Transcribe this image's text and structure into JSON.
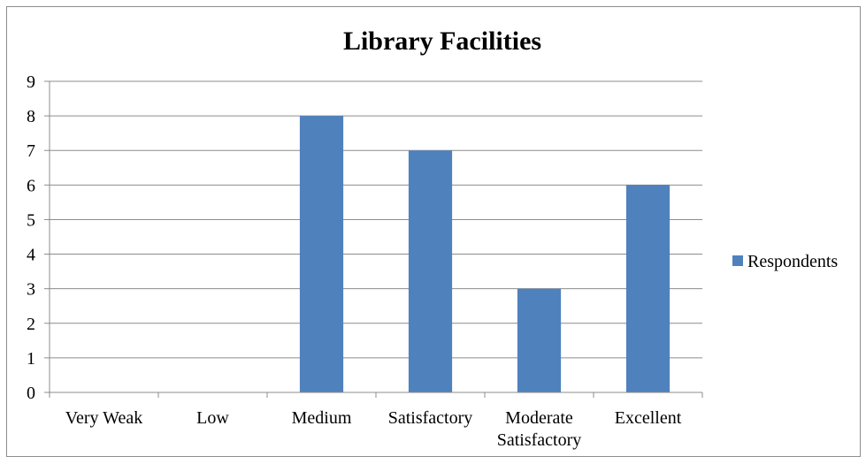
{
  "chart_data": {
    "type": "bar",
    "title": "Library Facilities",
    "categories": [
      "Very Weak",
      "Low",
      "Medium",
      "Satisfactory",
      "Moderate Satisfactory",
      "Excellent"
    ],
    "category_lines": [
      [
        "Very Weak"
      ],
      [
        "Low"
      ],
      [
        "Medium"
      ],
      [
        "Satisfactory"
      ],
      [
        "Moderate",
        "Satisfactory"
      ],
      [
        "Excellent"
      ]
    ],
    "series": [
      {
        "name": "Respondents",
        "values": [
          0,
          0,
          8,
          7,
          3,
          6
        ]
      }
    ],
    "ylim": [
      0,
      9
    ],
    "yticks": [
      "0",
      "1",
      "2",
      "3",
      "4",
      "5",
      "6",
      "7",
      "8",
      "9"
    ],
    "grid": true,
    "legend_position": "right",
    "bar_color": "#4f81bd"
  }
}
